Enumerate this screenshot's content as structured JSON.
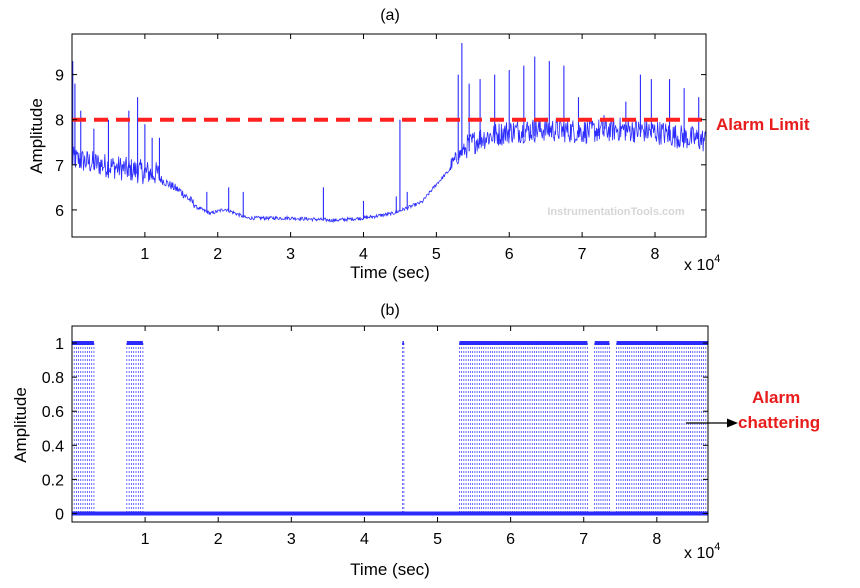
{
  "watermark": "InstrumentationTools.com",
  "colors": {
    "signal": "#2b2bff",
    "alarm_line": "#ff2020",
    "annotation": "#e81c1c",
    "axis": "#000000"
  },
  "chart_data": [
    {
      "type": "line",
      "title": "(a)",
      "xlabel": "Time (sec)",
      "ylabel": "Amplitude",
      "x_multiplier_label": "x 10",
      "x_multiplier_exponent": "4",
      "xlim": [
        0,
        8.7
      ],
      "ylim": [
        5.4,
        9.9
      ],
      "xticks": [
        1,
        2,
        3,
        4,
        5,
        6,
        7,
        8
      ],
      "xtick_labels": [
        "1",
        "2",
        "3",
        "4",
        "5",
        "6",
        "7",
        "8"
      ],
      "yticks": [
        6,
        7,
        8,
        9
      ],
      "ytick_labels": [
        "6",
        "7",
        "8",
        "9"
      ],
      "grid": false,
      "alarm_limit": {
        "label": "Alarm Limit",
        "value": 8.0
      },
      "series": [
        {
          "baseline": {
            "x": [
              0,
              0.3,
              0.8,
              1.2,
              1.5,
              1.7,
              1.9,
              2.1,
              2.4,
              3.0,
              3.6,
              4.0,
              4.4,
              4.8,
              5.0,
              5.2,
              5.35,
              5.6,
              6.0,
              6.5,
              7.0,
              7.5,
              8.0,
              8.3,
              8.7
            ],
            "y": [
              7.0,
              6.9,
              6.75,
              6.65,
              6.35,
              6.05,
              5.9,
              6.0,
              5.8,
              5.8,
              5.75,
              5.8,
              5.9,
              6.15,
              6.55,
              6.9,
              7.2,
              7.45,
              7.6,
              7.65,
              7.6,
              7.65,
              7.6,
              7.5,
              7.4
            ]
          },
          "spikes": [
            {
              "x": 0.01,
              "y": 9.3
            },
            {
              "x": 0.04,
              "y": 8.8
            },
            {
              "x": 0.12,
              "y": 8.2
            },
            {
              "x": 0.3,
              "y": 7.8
            },
            {
              "x": 0.5,
              "y": 8.0
            },
            {
              "x": 0.78,
              "y": 8.2
            },
            {
              "x": 0.9,
              "y": 8.5
            },
            {
              "x": 1.0,
              "y": 7.9
            },
            {
              "x": 1.1,
              "y": 7.6
            },
            {
              "x": 1.2,
              "y": 7.6
            },
            {
              "x": 1.85,
              "y": 6.4
            },
            {
              "x": 2.15,
              "y": 6.5
            },
            {
              "x": 2.35,
              "y": 6.4
            },
            {
              "x": 3.45,
              "y": 6.5
            },
            {
              "x": 4.0,
              "y": 6.2
            },
            {
              "x": 4.45,
              "y": 6.3
            },
            {
              "x": 4.5,
              "y": 8.0
            },
            {
              "x": 4.6,
              "y": 6.4
            },
            {
              "x": 5.3,
              "y": 9.0
            },
            {
              "x": 5.35,
              "y": 9.7
            },
            {
              "x": 5.45,
              "y": 8.8
            },
            {
              "x": 5.6,
              "y": 8.9
            },
            {
              "x": 5.8,
              "y": 9.0
            },
            {
              "x": 6.0,
              "y": 9.1
            },
            {
              "x": 6.2,
              "y": 9.2
            },
            {
              "x": 6.35,
              "y": 9.4
            },
            {
              "x": 6.55,
              "y": 9.3
            },
            {
              "x": 6.75,
              "y": 9.2
            },
            {
              "x": 6.95,
              "y": 8.5
            },
            {
              "x": 7.3,
              "y": 8.1
            },
            {
              "x": 7.6,
              "y": 8.4
            },
            {
              "x": 7.8,
              "y": 9.0
            },
            {
              "x": 7.95,
              "y": 8.9
            },
            {
              "x": 8.2,
              "y": 8.9
            },
            {
              "x": 8.4,
              "y": 8.7
            },
            {
              "x": 8.6,
              "y": 8.5
            }
          ]
        }
      ]
    },
    {
      "type": "line",
      "title": "(b)",
      "xlabel": "Time (sec)",
      "ylabel": "Amplitude",
      "x_multiplier_label": "x 10",
      "x_multiplier_exponent": "4",
      "xlim": [
        0,
        8.7
      ],
      "ylim": [
        -0.05,
        1.1
      ],
      "xticks": [
        1,
        2,
        3,
        4,
        5,
        6,
        7,
        8
      ],
      "xtick_labels": [
        "1",
        "2",
        "3",
        "4",
        "5",
        "6",
        "7",
        "8"
      ],
      "yticks": [
        0,
        0.2,
        0.4,
        0.6,
        0.8,
        1
      ],
      "ytick_labels": [
        "0",
        "0.2",
        "0.4",
        "0.6",
        "0.8",
        "1"
      ],
      "grid": false,
      "annotation": {
        "line1": "Alarm",
        "line2": "chattering"
      },
      "series": [
        {
          "alarm_active_intervals": [
            [
              0.0,
              0.3
            ],
            [
              0.75,
              0.97
            ],
            [
              4.52,
              4.54
            ],
            [
              5.3,
              7.05
            ],
            [
              7.15,
              7.35
            ],
            [
              7.45,
              8.7
            ]
          ],
          "values": [
            0,
            1
          ]
        }
      ]
    }
  ]
}
